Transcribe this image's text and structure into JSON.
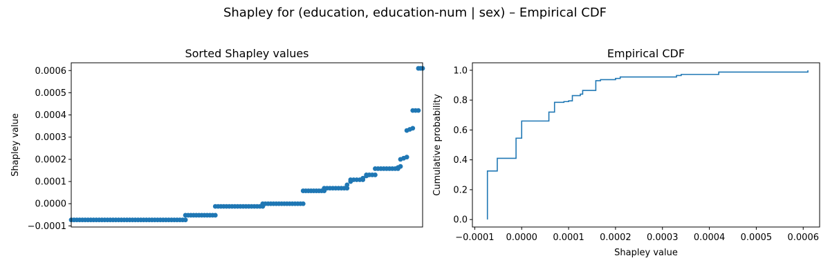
{
  "figure": {
    "suptitle": "Shapley for (education, education-num | sex) – Empirical CDF"
  },
  "chart_data": [
    {
      "type": "scatter",
      "title": "Sorted Shapley values",
      "xlabel": "",
      "ylabel": "Shapley value",
      "xlim": [
        0,
        1
      ],
      "ylim": [
        -0.000105,
        0.000635
      ],
      "yticks": [
        -0.0001,
        0.0,
        0.0001,
        0.0002,
        0.0003,
        0.0004,
        0.0005,
        0.0006
      ],
      "ytick_labels": [
        "−0.0001",
        "0.0000",
        "0.0001",
        "0.0002",
        "0.0003",
        "0.0004",
        "0.0005",
        "0.0006"
      ],
      "show_xticks": false,
      "grid": false,
      "color": "#1f77b4",
      "segments": [
        {
          "x_start": 0.0,
          "x_end": 0.325,
          "y_start": -7.3e-05,
          "y_end": -7.3e-05
        },
        {
          "x_start": 0.325,
          "x_end": 0.41,
          "y_start": -5.2e-05,
          "y_end": -5.2e-05
        },
        {
          "x_start": 0.41,
          "x_end": 0.545,
          "y_start": -1.2e-05,
          "y_end": -1.2e-05
        },
        {
          "x_start": 0.545,
          "x_end": 0.66,
          "y_start": 0.0,
          "y_end": 0.0
        },
        {
          "x_start": 0.66,
          "x_end": 0.72,
          "y_start": 5.8e-05,
          "y_end": 5.8e-05
        },
        {
          "x_start": 0.72,
          "x_end": 0.785,
          "y_start": 7e-05,
          "y_end": 7e-05
        },
        {
          "x_start": 0.785,
          "x_end": 0.795,
          "y_start": 8.5e-05,
          "y_end": 0.0001
        },
        {
          "x_start": 0.795,
          "x_end": 0.83,
          "y_start": 0.000108,
          "y_end": 0.000108
        },
        {
          "x_start": 0.83,
          "x_end": 0.84,
          "y_start": 0.000115,
          "y_end": 0.000125
        },
        {
          "x_start": 0.84,
          "x_end": 0.865,
          "y_start": 0.00013,
          "y_end": 0.00013
        },
        {
          "x_start": 0.865,
          "x_end": 0.93,
          "y_start": 0.000158,
          "y_end": 0.000158
        },
        {
          "x_start": 0.93,
          "x_end": 0.937,
          "y_start": 0.000163,
          "y_end": 0.000168
        },
        {
          "x_start": 0.937,
          "x_end": 0.955,
          "y_start": 0.0002,
          "y_end": 0.00021
        },
        {
          "x_start": 0.955,
          "x_end": 0.972,
          "y_start": 0.00033,
          "y_end": 0.00034
        },
        {
          "x_start": 0.972,
          "x_end": 0.988,
          "y_start": 0.00042,
          "y_end": 0.00042
        },
        {
          "x_start": 0.988,
          "x_end": 1.0,
          "y_start": 0.00061,
          "y_end": 0.00061
        }
      ]
    },
    {
      "type": "line",
      "title": "Empirical CDF",
      "xlabel": "Shapley value",
      "ylabel": "Cumulative probability",
      "xlim": [
        -0.000105,
        0.000635
      ],
      "ylim": [
        -0.05,
        1.05
      ],
      "xticks": [
        -0.0001,
        0.0,
        0.0001,
        0.0002,
        0.0003,
        0.0004,
        0.0005,
        0.0006
      ],
      "xtick_labels": [
        "−0.0001",
        "0.0000",
        "0.0001",
        "0.0002",
        "0.0003",
        "0.0004",
        "0.0005",
        "0.0006"
      ],
      "yticks": [
        0.0,
        0.2,
        0.4,
        0.6,
        0.8,
        1.0
      ],
      "ytick_labels": [
        "0.0",
        "0.2",
        "0.4",
        "0.6",
        "0.8",
        "1.0"
      ],
      "grid": false,
      "color": "#1f77b4",
      "steps": [
        {
          "x": -7.3e-05,
          "y": 0.325
        },
        {
          "x": -5.2e-05,
          "y": 0.41
        },
        {
          "x": -1.2e-05,
          "y": 0.545
        },
        {
          "x": 0.0,
          "y": 0.66
        },
        {
          "x": 5.8e-05,
          "y": 0.72
        },
        {
          "x": 7e-05,
          "y": 0.785
        },
        {
          "x": 9e-05,
          "y": 0.79
        },
        {
          "x": 0.0001,
          "y": 0.795
        },
        {
          "x": 0.000108,
          "y": 0.83
        },
        {
          "x": 0.000125,
          "y": 0.84
        },
        {
          "x": 0.00013,
          "y": 0.865
        },
        {
          "x": 0.000158,
          "y": 0.93
        },
        {
          "x": 0.000168,
          "y": 0.937
        },
        {
          "x": 0.0002,
          "y": 0.945
        },
        {
          "x": 0.00021,
          "y": 0.955
        },
        {
          "x": 0.00033,
          "y": 0.965
        },
        {
          "x": 0.00034,
          "y": 0.972
        },
        {
          "x": 0.00042,
          "y": 0.988
        },
        {
          "x": 0.00061,
          "y": 1.0
        }
      ]
    }
  ]
}
